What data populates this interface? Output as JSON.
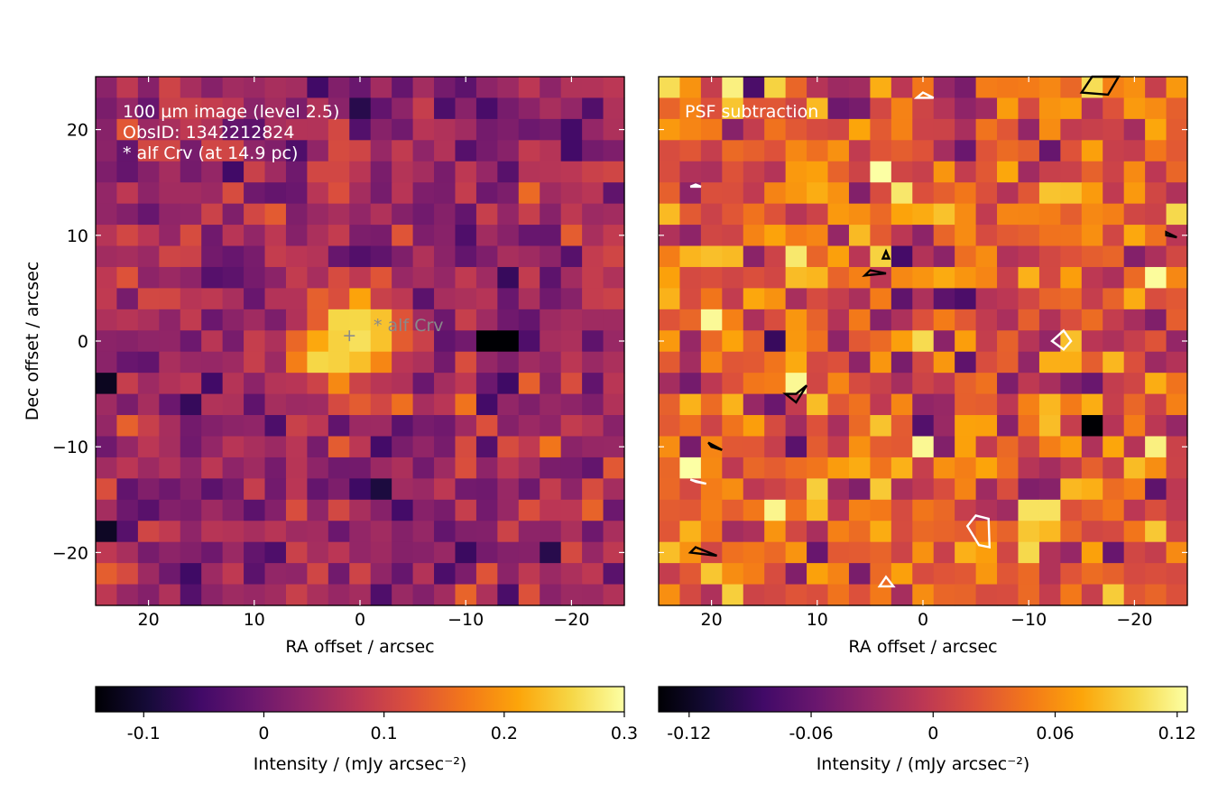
{
  "chart_data": [
    {
      "type": "heatmap",
      "colormap": "inferno",
      "annotation_lines": [
        "100 µm image (level 2.5)",
        "ObsID: 1342212824",
        "* alf Crv (at 14.9 pc)"
      ],
      "star_label": "* alf Crv",
      "star_marker": "+",
      "star_position": [
        1.0,
        0.5
      ],
      "xlabel": "RA offset / arcsec",
      "ylabel": "Dec offset / arcsec",
      "x_direction": "decreasing to the right",
      "xlim": [
        25,
        -25
      ],
      "ylim": [
        -25,
        25
      ],
      "xticks": [
        20,
        10,
        0,
        -10,
        -20
      ],
      "xtick_labels": [
        "20",
        "10",
        "0",
        "−10",
        "−20"
      ],
      "yticks": [
        20,
        10,
        0,
        -10,
        -20
      ],
      "ytick_labels": [
        "20",
        "10",
        "0",
        "−10",
        "−20"
      ],
      "colorbar": {
        "label": "Intensity / (mJy arcsec⁻²)",
        "range": [
          -0.14,
          0.3
        ],
        "ticks": [
          -0.1,
          0,
          0.1,
          0.2,
          0.3
        ],
        "tick_labels": [
          "-0.1",
          "0",
          "0.1",
          "0.2",
          "0.3"
        ]
      },
      "source_peak": {
        "ra": 1,
        "dec": 0,
        "value": 0.3
      },
      "notable": [
        {
          "ra": -13,
          "dec": 0,
          "value": -0.14,
          "note": "darkest pixel"
        }
      ]
    },
    {
      "type": "heatmap",
      "colormap": "inferno",
      "annotation_lines": [
        "PSF subtraction"
      ],
      "xlabel": "RA offset / arcsec",
      "x_direction": "decreasing to the right",
      "xlim": [
        25,
        -25
      ],
      "ylim": [
        -25,
        25
      ],
      "xticks": [
        20,
        10,
        0,
        -10,
        -20
      ],
      "xtick_labels": [
        "20",
        "10",
        "0",
        "−10",
        "−20"
      ],
      "contours": [
        "black = positive residual",
        "white = negative residual"
      ],
      "colorbar": {
        "label": "Intensity / (mJy arcsec⁻²)",
        "range": [
          -0.135,
          0.125
        ],
        "ticks": [
          -0.12,
          -0.06,
          0,
          0.06,
          0.12
        ],
        "tick_labels": [
          "-0.12",
          "-0.06",
          "0",
          "0.06",
          "0.12"
        ]
      }
    }
  ]
}
